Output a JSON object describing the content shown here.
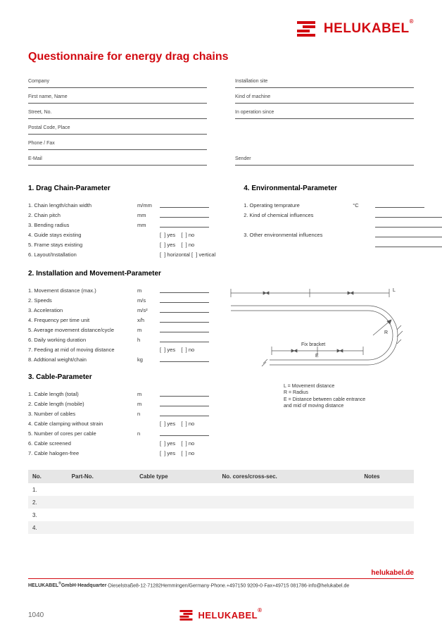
{
  "brand": "HELUKABEL",
  "brand_color": "#d20a11",
  "title": "Questionnaire for energy drag chains",
  "contact_left": [
    "Company",
    "First name, Name",
    "Street, No.",
    "Postal Code, Place",
    "Phone / Fax",
    "E-Mail"
  ],
  "contact_right": [
    "Installation site",
    "Kind of machine",
    "In operation since",
    "",
    "",
    "Sender"
  ],
  "sect1": {
    "heading": "1. Drag Chain-Parameter",
    "rows": [
      {
        "label": "1. Chain length/chain width",
        "unit": "m/mm",
        "type": "line"
      },
      {
        "label": "2. Chain pitch",
        "unit": "mm",
        "type": "line"
      },
      {
        "label": "3. Bending radius",
        "unit": "mm",
        "type": "line"
      },
      {
        "label": "4. Guide stays existing",
        "unit": "",
        "type": "yn"
      },
      {
        "label": "5. Frame stays existing",
        "unit": "",
        "type": "yn"
      },
      {
        "label": "6. Layout/Installation",
        "unit": "",
        "type": "hv"
      }
    ]
  },
  "sect4": {
    "heading": "4. Environmental-Parameter",
    "rows": [
      {
        "label": "1. Operating temprature",
        "unit": "°C",
        "type": "line"
      },
      {
        "label": "2. Kind of chemical influences",
        "unit": "",
        "type": "longline"
      },
      {
        "label": "",
        "unit": "",
        "type": "longline"
      },
      {
        "label": "3. Other environmental influences",
        "unit": "",
        "type": "longline"
      },
      {
        "label": "",
        "unit": "",
        "type": "longline"
      }
    ]
  },
  "sect2": {
    "heading": "2. Installation and Movement-Parameter",
    "rows": [
      {
        "label": "1. Movement distance (max.)",
        "unit": "m",
        "type": "line"
      },
      {
        "label": "2. Speeds",
        "unit": "m/s",
        "type": "line"
      },
      {
        "label": "3. Acceleration",
        "unit": "m/s²",
        "type": "line"
      },
      {
        "label": "4. Frequency per time unit",
        "unit": "x/h",
        "type": "line"
      },
      {
        "label": "5. Average movement distance/cycle",
        "unit": "m",
        "type": "line"
      },
      {
        "label": "6. Daily working duration",
        "unit": "h",
        "type": "line"
      },
      {
        "label": "7. Feeding at mid of moving distance",
        "unit": "",
        "type": "yn"
      },
      {
        "label": "8. Addtional weight/chain",
        "unit": "kg",
        "type": "line"
      }
    ]
  },
  "sect3": {
    "heading": "3. Cable-Parameter",
    "rows": [
      {
        "label": "1. Cable length (total)",
        "unit": "m",
        "type": "line"
      },
      {
        "label": "2. Cable length (mobile)",
        "unit": "m",
        "type": "line"
      },
      {
        "label": "3. Number of cables",
        "unit": "n",
        "type": "line"
      },
      {
        "label": "4. Cable clamping without strain",
        "unit": "",
        "type": "yn"
      },
      {
        "label": "5. Number of cores per cable",
        "unit": "n",
        "type": "line"
      },
      {
        "label": "6. Cable screened",
        "unit": "",
        "type": "yn"
      },
      {
        "label": "7. Cable halogen-free",
        "unit": "",
        "type": "yn"
      }
    ]
  },
  "diagram": {
    "top_label": "L",
    "fix_bracket": "Fix bracket",
    "e_label": "E",
    "r_label": "R",
    "legend": [
      "L = Movement distance",
      "R = Radius",
      "E = Distance between cable entrance",
      "       and mid of moving distance"
    ]
  },
  "table": {
    "headers": [
      "No.",
      "Part-No.",
      "Cable type",
      "No. cores/cross-sec.",
      "Notes"
    ],
    "rows": [
      "1.",
      "2.",
      "3.",
      "4."
    ]
  },
  "site": "helukabel.de",
  "footer": "HELUKABEL®GmbH·Headquarter·Dieselstraße8-12·71282Hemmingen/Germany·Phone.+497150 9209-0·Fax+49715 081786·info@helukabel.de",
  "page": "1040",
  "labels": {
    "yes": "yes",
    "no": "no",
    "horizontal": "horizontal",
    "vertical": "vertical"
  }
}
